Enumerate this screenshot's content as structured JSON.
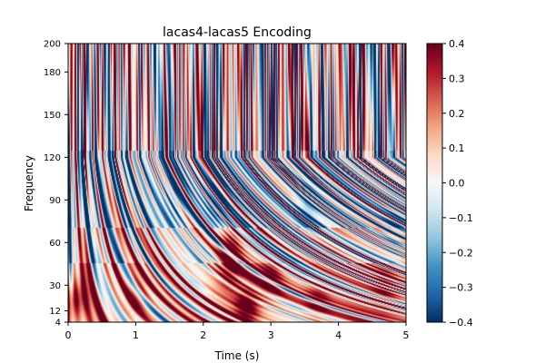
{
  "chart_data": {
    "type": "heatmap",
    "title": "lacas4-lacas5 Encoding",
    "xlabel": "Time (s)",
    "ylabel": "Frequency",
    "xlim": [
      0,
      5
    ],
    "ylim": [
      4,
      200
    ],
    "x_ticks": [
      0,
      1,
      2,
      3,
      4,
      5
    ],
    "x_tick_labels": [
      "0",
      "1",
      "2",
      "3",
      "4",
      "5"
    ],
    "y_ticks": [
      4,
      12,
      30,
      60,
      90,
      120,
      150,
      180,
      200
    ],
    "y_tick_labels": [
      "4",
      "12",
      "30",
      "60",
      "90",
      "120",
      "150",
      "180",
      "200"
    ],
    "colormap": "RdBu_r",
    "clim": [
      -0.4,
      0.4
    ],
    "colorbar_ticks": [
      0.4,
      0.3,
      0.2,
      0.1,
      0.0,
      -0.1,
      -0.2,
      -0.3,
      -0.4
    ],
    "colorbar_tick_labels": [
      "0.4",
      "0.3",
      "0.2",
      "0.1",
      "0.0",
      "−0.1",
      "−0.2",
      "−0.3",
      "−0.4"
    ],
    "hotspots": [
      {
        "t": 2.4,
        "f": 50,
        "value": 0.38
      },
      {
        "t": 2.65,
        "f": 15,
        "value": 0.35
      },
      {
        "t": 3.0,
        "f": 35,
        "value": 0.25
      },
      {
        "t": 0.1,
        "f": 20,
        "value": 0.3
      },
      {
        "t": 1.0,
        "f": 20,
        "value": 0.2
      },
      {
        "t": 3.7,
        "f": 20,
        "value": 0.18
      },
      {
        "t": 4.7,
        "f": 30,
        "value": 0.2
      },
      {
        "t": 1.6,
        "f": 95,
        "value": -0.2
      },
      {
        "t": 2.2,
        "f": 90,
        "value": -0.15
      },
      {
        "t": 3.55,
        "f": 85,
        "value": -0.18
      },
      {
        "t": 4.85,
        "f": 65,
        "value": -0.2
      },
      {
        "t": 0.4,
        "f": 110,
        "value": -0.15
      },
      {
        "t": 1.9,
        "f": 30,
        "value": -0.1
      }
    ]
  }
}
